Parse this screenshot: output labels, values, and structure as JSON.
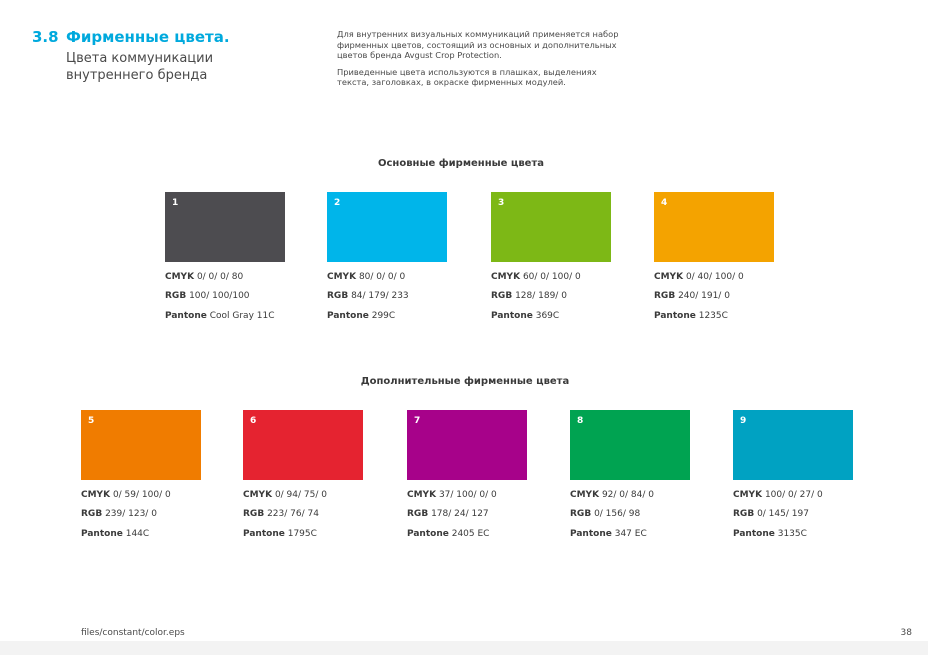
{
  "header": {
    "section_number": "3.8",
    "title": "Фирменные цвета.",
    "subtitle": "Цвета коммуникации внутреннего бренда",
    "intro_p1": "Для внутренних визуальных коммуникаций применяется набор фирменных цветов, состоящий из основных и дополнительных цветов бренда Avgust Crop Protection.",
    "intro_p2": "Приведенные цвета используются в плашках, выделениях текста, заголовках, в окраске фирменных модулей."
  },
  "primary": {
    "title": "Основные фирменные цвета",
    "colors": [
      {
        "num": "1",
        "hex": "#4d4c50",
        "cmyk": "0/ 0/ 0/ 80",
        "rgb": "100/ 100/100",
        "pantone": "Cool Gray 11C"
      },
      {
        "num": "2",
        "hex": "#00b5ea",
        "cmyk": "80/ 0/ 0/ 0",
        "rgb": "84/ 179/ 233",
        "pantone": "299C"
      },
      {
        "num": "3",
        "hex": "#7db816",
        "cmyk": "60/ 0/ 100/ 0",
        "rgb": "128/ 189/ 0",
        "pantone": "369C"
      },
      {
        "num": "4",
        "hex": "#f4a300",
        "cmyk": "0/ 40/ 100/ 0",
        "rgb": "240/ 191/ 0",
        "pantone": "1235C"
      }
    ]
  },
  "secondary": {
    "title": "Дополнительные фирменные цвета",
    "colors": [
      {
        "num": "5",
        "hex": "#f07c00",
        "cmyk": "0/ 59/ 100/ 0",
        "rgb": "239/ 123/ 0",
        "pantone": "144C"
      },
      {
        "num": "6",
        "hex": "#e52330",
        "cmyk": "0/ 94/ 75/ 0",
        "rgb": "223/ 76/ 74",
        "pantone": "1795C"
      },
      {
        "num": "7",
        "hex": "#a7028a",
        "cmyk": "37/ 100/ 0/ 0",
        "rgb": "178/ 24/ 127",
        "pantone": "2405 EC"
      },
      {
        "num": "8",
        "hex": "#00a351",
        "cmyk": "92/ 0/ 84/ 0",
        "rgb": "0/ 156/ 98",
        "pantone": "347 EC"
      },
      {
        "num": "9",
        "hex": "#00a2c2",
        "cmyk": "100/ 0/ 27/ 0",
        "rgb": "0/ 145/ 197",
        "pantone": "3135C"
      }
    ]
  },
  "labels": {
    "cmyk": "CMYK",
    "rgb": "RGB",
    "pantone": "Pantone"
  },
  "footer": {
    "path": "files/constant/color.eps",
    "page": "38"
  }
}
